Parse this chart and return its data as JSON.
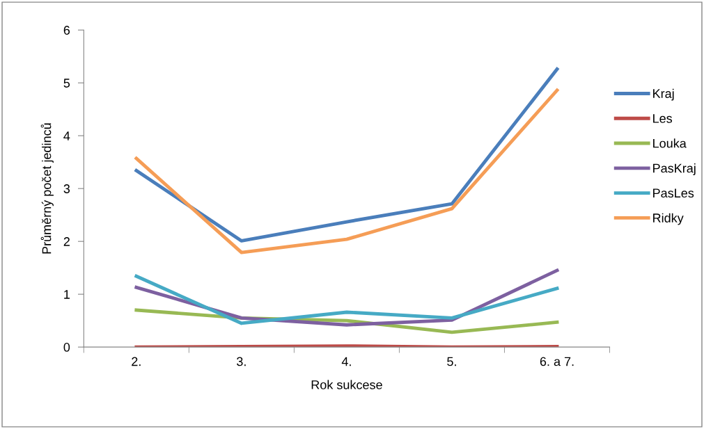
{
  "chart_data": {
    "type": "line",
    "xlabel": "Rok sukcese",
    "ylabel": "Průměrný počet jedinců",
    "categories": [
      "2.",
      "3.",
      "4.",
      "5.",
      "6. a 7."
    ],
    "series": [
      {
        "name": "Kraj",
        "color": "#4a7ebb",
        "values": [
          3.34,
          2.01,
          2.37,
          2.71,
          5.26
        ]
      },
      {
        "name": "Les",
        "color": "#be4b48",
        "values": [
          0,
          0.01,
          0.02,
          0,
          0.01
        ]
      },
      {
        "name": "Louka",
        "color": "#98b954",
        "values": [
          0.7,
          0.55,
          0.5,
          0.28,
          0.47
        ]
      },
      {
        "name": "PasKraj",
        "color": "#7d60a0",
        "values": [
          1.13,
          0.55,
          0.42,
          0.51,
          1.45
        ]
      },
      {
        "name": "PasLes",
        "color": "#46aac5",
        "values": [
          1.34,
          0.45,
          0.66,
          0.55,
          1.11
        ]
      },
      {
        "name": "Ridky",
        "color": "#f59d56",
        "values": [
          3.57,
          1.79,
          2.04,
          2.62,
          4.86
        ]
      }
    ],
    "ylim": [
      0,
      6
    ],
    "yticks": [
      0,
      1,
      2,
      3,
      4,
      5,
      6
    ],
    "grid": false,
    "legend": "right",
    "marker": "none",
    "line_style": "solid"
  }
}
